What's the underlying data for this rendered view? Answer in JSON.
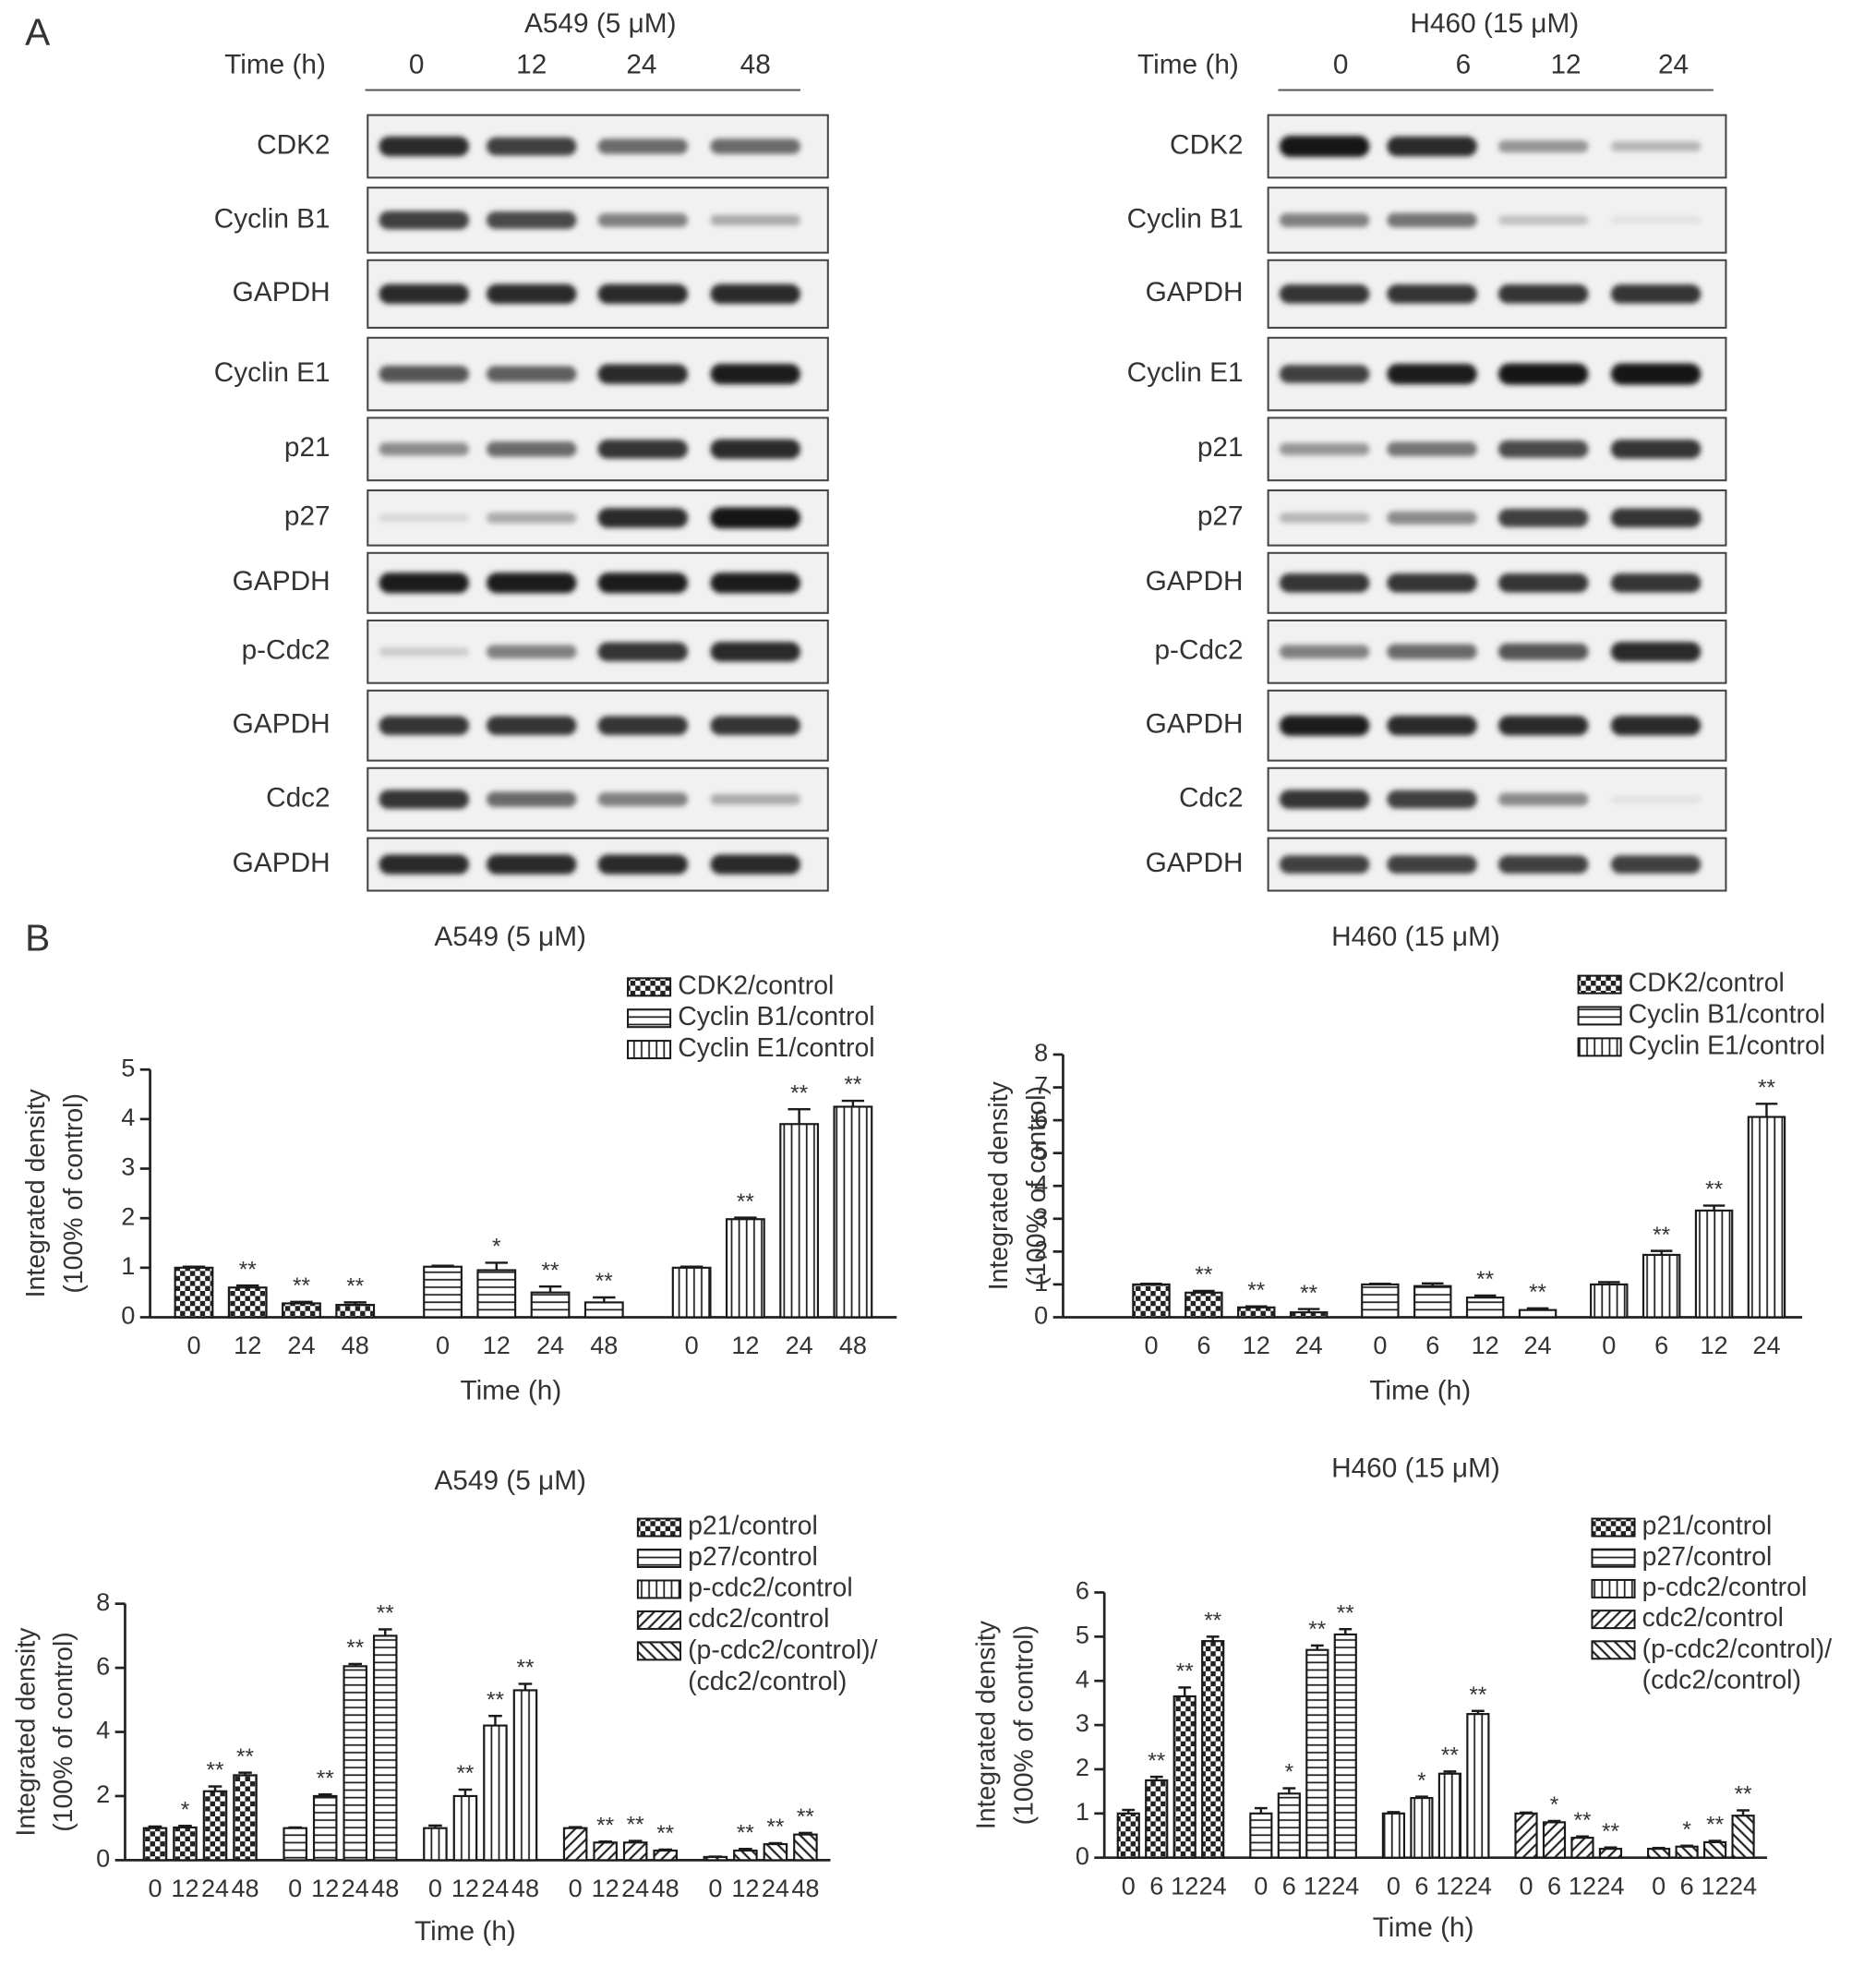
{
  "panel_labels": [
    "A",
    "B"
  ],
  "blots": [
    {
      "title": "A549 (5 μM)",
      "time_label": "Time (h)",
      "times": [
        "0",
        "12",
        "24",
        "48"
      ],
      "proteins": [
        "CDK2",
        "Cyclin B1",
        "GAPDH",
        "Cyclin E1",
        "p21",
        "p27",
        "GAPDH",
        "p-Cdc2",
        "GAPDH",
        "Cdc2",
        "GAPDH"
      ]
    },
    {
      "title": "H460 (15 μM)",
      "time_label": "Time (h)",
      "times": [
        "0",
        "6",
        "12",
        "24"
      ],
      "proteins": [
        "CDK2",
        "Cyclin B1",
        "GAPDH",
        "Cyclin E1",
        "p21",
        "p27",
        "GAPDH",
        "p-Cdc2",
        "GAPDH",
        "Cdc2",
        "GAPDH"
      ]
    }
  ],
  "chart_data": [
    {
      "type": "bar",
      "title": "A549 (5 μM)",
      "ylabel": [
        "Integrated density",
        "(100% of control)"
      ],
      "xlabel": "Time (h)",
      "categories": [
        "0",
        "12",
        "24",
        "48"
      ],
      "ylim": [
        0,
        5
      ],
      "yticks": [
        0,
        1,
        2,
        3,
        4,
        5
      ],
      "series": [
        {
          "name": "CDK2/control",
          "color": "#1a1a1a",
          "pattern": "checker",
          "values": [
            1.0,
            0.6,
            0.28,
            0.25
          ],
          "errors": [
            0.02,
            0.04,
            0.03,
            0.05
          ],
          "significance": [
            null,
            "**",
            "**",
            "**"
          ]
        },
        {
          "name": "Cyclin B1/control",
          "color": "#1a1a1a",
          "pattern": "horizontal",
          "values": [
            1.02,
            0.95,
            0.5,
            0.3
          ],
          "errors": [
            0.02,
            0.15,
            0.12,
            0.1
          ],
          "significance": [
            null,
            "*",
            "**",
            "**"
          ]
        },
        {
          "name": "Cyclin E1/control",
          "color": "#1a1a1a",
          "pattern": "vertical",
          "values": [
            1.0,
            1.98,
            3.9,
            4.25
          ],
          "errors": [
            0.02,
            0.03,
            0.3,
            0.12
          ],
          "significance": [
            null,
            "**",
            "**",
            "**"
          ]
        }
      ]
    },
    {
      "type": "bar",
      "title": "H460 (15 μM)",
      "ylabel": [
        "Integrated density",
        "(100% of control)"
      ],
      "xlabel": "Time (h)",
      "categories": [
        "0",
        "6",
        "12",
        "24"
      ],
      "ylim": [
        0,
        8
      ],
      "yticks": [
        0,
        1,
        2,
        3,
        4,
        5,
        6,
        7,
        8
      ],
      "series": [
        {
          "name": "CDK2/control",
          "color": "#1a1a1a",
          "pattern": "checker",
          "values": [
            1.0,
            0.75,
            0.3,
            0.15
          ],
          "errors": [
            0.02,
            0.05,
            0.03,
            0.1
          ],
          "significance": [
            null,
            "**",
            "**",
            "**"
          ]
        },
        {
          "name": "Cyclin B1/control",
          "color": "#1a1a1a",
          "pattern": "horizontal",
          "values": [
            1.0,
            0.95,
            0.6,
            0.22
          ],
          "errors": [
            0.02,
            0.08,
            0.06,
            0.05
          ],
          "significance": [
            null,
            null,
            "**",
            "**"
          ]
        },
        {
          "name": "Cyclin E1/control",
          "color": "#1a1a1a",
          "pattern": "vertical",
          "values": [
            1.0,
            1.9,
            3.25,
            6.1
          ],
          "errors": [
            0.07,
            0.12,
            0.15,
            0.4
          ],
          "significance": [
            null,
            "**",
            "**",
            "**"
          ]
        }
      ]
    },
    {
      "type": "bar",
      "title": "A549 (5 μM)",
      "ylabel": [
        "Integrated density",
        "(100% of control)"
      ],
      "xlabel": "Time (h)",
      "categories": [
        "0",
        "12",
        "24",
        "48"
      ],
      "ylim": [
        0,
        8
      ],
      "yticks": [
        0,
        2,
        4,
        6,
        8
      ],
      "series": [
        {
          "name": "p21/control",
          "color": "#1a1a1a",
          "pattern": "checker",
          "values": [
            1.0,
            1.02,
            2.15,
            2.65
          ],
          "errors": [
            0.05,
            0.05,
            0.15,
            0.08
          ],
          "significance": [
            null,
            "*",
            "**",
            "**"
          ]
        },
        {
          "name": "p27/control",
          "color": "#1a1a1a",
          "pattern": "horizontal",
          "values": [
            1.0,
            2.0,
            6.05,
            7.0
          ],
          "errors": [
            0.02,
            0.05,
            0.07,
            0.2
          ],
          "significance": [
            null,
            "**",
            "**",
            "**"
          ]
        },
        {
          "name": "p-cdc2/control",
          "color": "#1a1a1a",
          "pattern": "vertical",
          "values": [
            1.0,
            2.0,
            4.2,
            5.3
          ],
          "errors": [
            0.08,
            0.2,
            0.3,
            0.2
          ],
          "significance": [
            null,
            "**",
            "**",
            "**"
          ]
        },
        {
          "name": "cdc2/control",
          "color": "#1a1a1a",
          "pattern": "diagonal",
          "values": [
            1.0,
            0.55,
            0.55,
            0.3
          ],
          "errors": [
            0.03,
            0.03,
            0.05,
            0.03
          ],
          "significance": [
            null,
            "**",
            "**",
            "**"
          ]
        },
        {
          "name": "(p-cdc2/control)/(cdc2/control)",
          "color": "#1a1a1a",
          "pattern": "antidiagonal",
          "values": [
            0.1,
            0.3,
            0.5,
            0.8
          ],
          "errors": [
            0.01,
            0.05,
            0.03,
            0.05
          ],
          "significance": [
            null,
            "**",
            "**",
            "**"
          ]
        }
      ]
    },
    {
      "type": "bar",
      "title": "H460 (15 μM)",
      "ylabel": [
        "Integrated density",
        "(100% of control)"
      ],
      "xlabel": "Time (h)",
      "categories": [
        "0",
        "6",
        "12",
        "24"
      ],
      "ylim": [
        0,
        6
      ],
      "yticks": [
        0,
        1,
        2,
        3,
        4,
        5,
        6
      ],
      "series": [
        {
          "name": "p21/control",
          "color": "#1a1a1a",
          "pattern": "checker",
          "values": [
            1.0,
            1.75,
            3.65,
            4.9
          ],
          "errors": [
            0.08,
            0.08,
            0.2,
            0.1
          ],
          "significance": [
            null,
            "**",
            "**",
            "**"
          ]
        },
        {
          "name": "p27/control",
          "color": "#1a1a1a",
          "pattern": "horizontal",
          "values": [
            1.0,
            1.45,
            4.7,
            5.05
          ],
          "errors": [
            0.12,
            0.12,
            0.1,
            0.12
          ],
          "significance": [
            null,
            "*",
            "**",
            "**"
          ]
        },
        {
          "name": "p-cdc2/control",
          "color": "#1a1a1a",
          "pattern": "vertical",
          "values": [
            1.0,
            1.35,
            1.9,
            3.25
          ],
          "errors": [
            0.03,
            0.03,
            0.05,
            0.07
          ],
          "significance": [
            null,
            "*",
            "**",
            "**"
          ]
        },
        {
          "name": "cdc2/control",
          "color": "#1a1a1a",
          "pattern": "diagonal",
          "values": [
            1.0,
            0.8,
            0.45,
            0.2
          ],
          "errors": [
            0.02,
            0.03,
            0.03,
            0.03
          ],
          "significance": [
            null,
            "*",
            "**",
            "**"
          ]
        },
        {
          "name": "(p-cdc2/control)/(cdc2/control)",
          "color": "#1a1a1a",
          "pattern": "antidiagonal",
          "values": [
            0.2,
            0.25,
            0.35,
            0.95
          ],
          "errors": [
            0.02,
            0.02,
            0.03,
            0.12
          ],
          "significance": [
            null,
            "*",
            "**",
            "**"
          ]
        }
      ]
    }
  ]
}
